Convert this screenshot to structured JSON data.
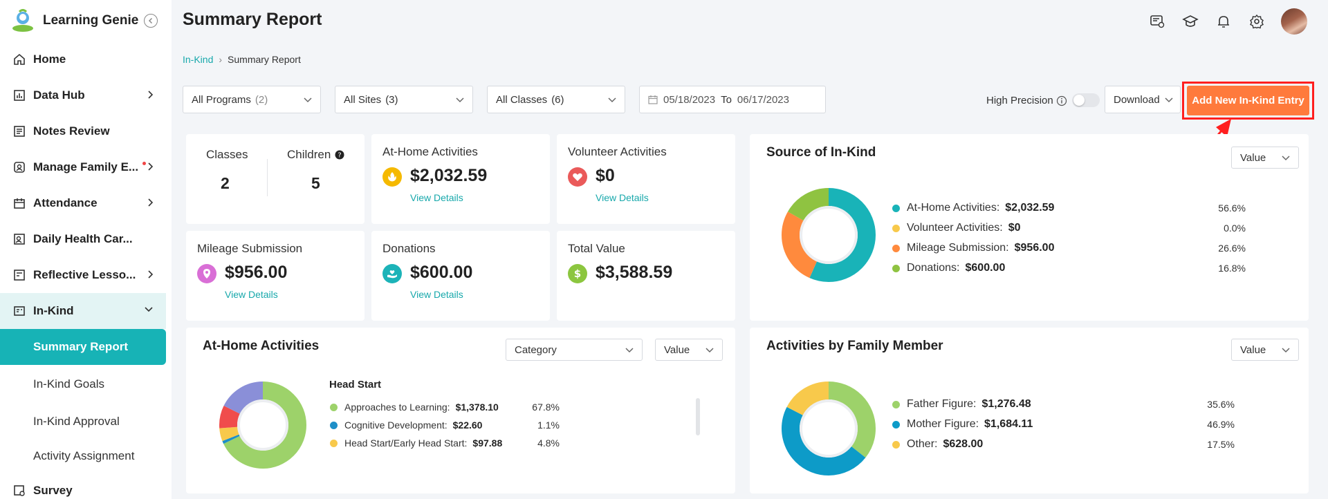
{
  "brand": {
    "name": "Learning Genie"
  },
  "colors": {
    "teal": "#17b3b6",
    "orange": "#ff7a3c",
    "highlight": "#ff1f1f"
  },
  "sidebar": {
    "items": [
      {
        "label": "Home",
        "icon": "home-icon"
      },
      {
        "label": "Data Hub",
        "icon": "chart-icon"
      },
      {
        "label": "Notes Review",
        "icon": "notes-icon"
      },
      {
        "label": "Manage Family E...",
        "icon": "family-icon"
      },
      {
        "label": "Attendance",
        "icon": "calendar-icon"
      },
      {
        "label": "Daily Health Car...",
        "icon": "health-icon"
      },
      {
        "label": "Reflective Lesso...",
        "icon": "book-icon"
      },
      {
        "label": "In-Kind",
        "icon": "inkind-icon"
      },
      {
        "label": "Survey",
        "icon": "survey-icon"
      }
    ],
    "sub_items": [
      {
        "label": "Summary Report"
      },
      {
        "label": "In-Kind Goals"
      },
      {
        "label": "In-Kind Approval"
      },
      {
        "label": "Activity Assignment"
      }
    ]
  },
  "header": {
    "title": "Summary Report"
  },
  "breadcrumb": {
    "parent": "In-Kind",
    "separator": "›",
    "current": "Summary Report"
  },
  "filters": {
    "programs": {
      "label": "All Programs",
      "count": "(2)"
    },
    "sites": {
      "label": "All Sites",
      "count": "(3)"
    },
    "classes": {
      "label": "All Classes",
      "count": "(6)"
    },
    "date_from": "05/18/2023",
    "date_to_word": "To",
    "date_to": "06/17/2023"
  },
  "toolbar": {
    "high_precision": "High Precision",
    "high_precision_on": false,
    "download": "Download",
    "add_entry": "Add New In-Kind Entry"
  },
  "stats": {
    "classes_label": "Classes",
    "classes_value": "2",
    "children_label": "Children",
    "children_value": "5",
    "at_home": {
      "title": "At-Home Activities",
      "value": "$2,032.59",
      "link": "View Details"
    },
    "volunteer": {
      "title": "Volunteer Activities",
      "value": "$0",
      "link": "View Details"
    },
    "mileage": {
      "title": "Mileage Submission",
      "value": "$956.00",
      "link": "View Details"
    },
    "donations": {
      "title": "Donations",
      "value": "$600.00",
      "link": "View Details"
    },
    "total": {
      "title": "Total Value",
      "value": "$3,588.59"
    }
  },
  "source_panel": {
    "title": "Source of In-Kind",
    "select": "Value",
    "legend": [
      {
        "label": "At-Home Activities:",
        "value": "$2,032.59",
        "pct": "56.6%",
        "pct_num": 56.6,
        "color": "#19b3b8"
      },
      {
        "label": "Volunteer Activities:",
        "value": "$0",
        "pct": "0.0%",
        "pct_num": 0.0,
        "color": "#f8c94b"
      },
      {
        "label": "Mileage Submission:",
        "value": "$956.00",
        "pct": "26.6%",
        "pct_num": 26.6,
        "color": "#ff8a3d"
      },
      {
        "label": "Donations:",
        "value": "$600.00",
        "pct": "16.8%",
        "pct_num": 16.8,
        "color": "#8fc341"
      }
    ]
  },
  "athome_panel": {
    "title": "At-Home Activities",
    "select_category": "Category",
    "select_value": "Value",
    "group_title": "Head Start",
    "legend": [
      {
        "label": "Approaches to Learning:",
        "value": "$1,378.10",
        "pct": "67.8%",
        "pct_num": 67.8,
        "color": "#9dd26a"
      },
      {
        "label": "Cognitive Development:",
        "value": "$22.60",
        "pct": "1.1%",
        "pct_num": 1.1,
        "color": "#1e8fc8"
      },
      {
        "label": "Head Start/Early Head Start:",
        "value": "$97.88",
        "pct": "4.8%",
        "pct_num": 4.8,
        "color": "#f8c94b"
      }
    ],
    "other_segments": [
      {
        "pct_num": 8.5,
        "color": "#f04c4c"
      },
      {
        "pct_num": 17.8,
        "color": "#8a8fd8"
      }
    ]
  },
  "family_panel": {
    "title": "Activities by Family Member",
    "select": "Value",
    "legend": [
      {
        "label": "Father Figure:",
        "value": "$1,276.48",
        "pct": "35.6%",
        "pct_num": 35.6,
        "color": "#9dd26a"
      },
      {
        "label": "Mother Figure:",
        "value": "$1,684.11",
        "pct": "46.9%",
        "pct_num": 46.9,
        "color": "#0d9bc8"
      },
      {
        "label": "Other:",
        "value": "$628.00",
        "pct": "17.5%",
        "pct_num": 17.5,
        "color": "#f8c94b"
      }
    ]
  }
}
